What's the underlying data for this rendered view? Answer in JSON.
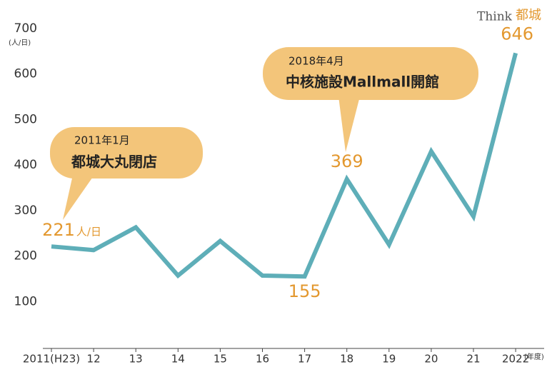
{
  "chart_data": {
    "type": "line",
    "logo": [
      "Think",
      "都城"
    ],
    "y_unit": "(人/日)",
    "x_unit": "(年度)",
    "categories": [
      "2011(H23)",
      "12",
      "13",
      "14",
      "15",
      "16",
      "17",
      "18",
      "19",
      "20",
      "21",
      "2022"
    ],
    "values": [
      221,
      213,
      263,
      157,
      233,
      157,
      155,
      369,
      225,
      430,
      287,
      646
    ],
    "value_labels": [
      "221",
      null,
      null,
      null,
      null,
      null,
      "155",
      "369",
      null,
      null,
      null,
      "646"
    ],
    "value_unit": "人/日",
    "color": "#5eaeb8",
    "ylim": [
      0,
      700
    ],
    "yticks": [
      100,
      200,
      300,
      400,
      500,
      600,
      700
    ],
    "annotations": [
      {
        "date": "2011年1月",
        "text": "都城大丸閉店"
      },
      {
        "date": "2018年4月",
        "text": "中核施設Mallmall開館"
      }
    ]
  }
}
